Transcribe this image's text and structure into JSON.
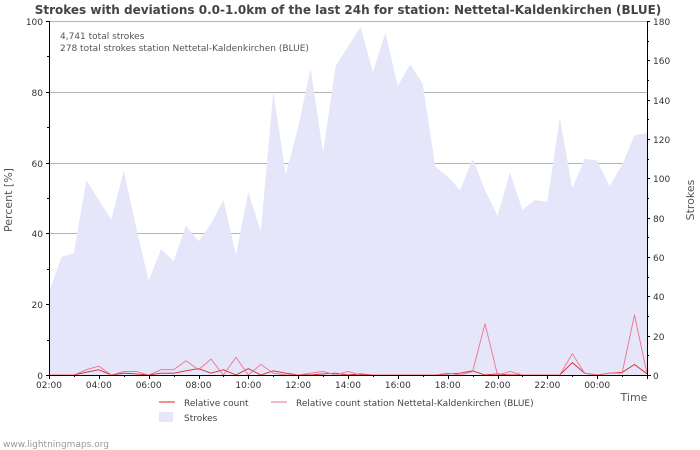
{
  "chart_data": {
    "type": "area+line",
    "title": "Strokes with deviations 0.0-1.0km of the last 24h for station: Nettetal-Kaldenkirchen (BLUE)",
    "annotations": [
      "4,741 total strokes",
      "278 total strokes station Nettetal-Kaldenkirchen (BLUE)"
    ],
    "xlabel": "Time",
    "ylabel_left": "Percent   [%]",
    "ylabel_right": "Strokes",
    "x_ticks": [
      "02:00",
      "04:00",
      "06:00",
      "08:00",
      "10:00",
      "12:00",
      "14:00",
      "16:00",
      "18:00",
      "20:00",
      "22:00",
      "00:00"
    ],
    "x_start_hour": 2,
    "y_left_ticks": [
      0,
      20,
      40,
      60,
      80,
      100
    ],
    "y_left_lim": [
      0,
      100
    ],
    "y_right_ticks": [
      0,
      20,
      40,
      60,
      80,
      100,
      120,
      140,
      160,
      180
    ],
    "y_right_lim": [
      0,
      180
    ],
    "x_hours": [
      0,
      0.5,
      1,
      1.5,
      2,
      2.5,
      3,
      3.5,
      4,
      4.5,
      5,
      5.5,
      6,
      6.5,
      7,
      7.5,
      8,
      8.5,
      9,
      9.5,
      10,
      10.5,
      11,
      11.5,
      12,
      12.5,
      13,
      13.5,
      14,
      14.5,
      15,
      15.5,
      16,
      16.5,
      17,
      17.5,
      18,
      18.5,
      19,
      19.5,
      20,
      20.5,
      21,
      21.5,
      22,
      22.5,
      23,
      23.5,
      24
    ],
    "series": [
      {
        "name": "Strokes",
        "axis": "right",
        "color": "#e6e6fa",
        "values": [
          42,
          60,
          62,
          99,
          89,
          79,
          104,
          75,
          48,
          64,
          58,
          76,
          68,
          77,
          89,
          61,
          93,
          73,
          144,
          102,
          126,
          156,
          113,
          157,
          167,
          177,
          154,
          174,
          147,
          158,
          148,
          106,
          101,
          94,
          110,
          94,
          81,
          103,
          84,
          89,
          88,
          131,
          95,
          110,
          109,
          96,
          107,
          122,
          123
        ]
      },
      {
        "name": "Relative count",
        "axis": "left",
        "color": "#d62728",
        "values": [
          0,
          0,
          0,
          0.8,
          1.5,
          0,
          0.5,
          0.3,
          0,
          0.5,
          0.5,
          1.2,
          1.8,
          0.5,
          1.5,
          0,
          1.8,
          0,
          1.2,
          0.5,
          0,
          0,
          0.3,
          0.5,
          0,
          0.3,
          0,
          0,
          0,
          0,
          0,
          0,
          0.3,
          0.5,
          1.2,
          0,
          0.3,
          0,
          0,
          0,
          0,
          0,
          3.5,
          0.5,
          0,
          0.5,
          0.7,
          3.0,
          0.3
        ]
      },
      {
        "name": "Relative count station Nettetal-Kaldenkirchen (BLUE)",
        "axis": "left",
        "color": "#f0708a",
        "values": [
          0,
          0,
          0,
          1.5,
          2.5,
          0,
          1,
          1,
          0,
          1.5,
          1.5,
          4,
          1.5,
          4.5,
          0,
          5,
          0,
          3,
          0.5,
          0,
          0,
          0.5,
          1,
          0,
          1,
          0,
          0,
          0,
          0,
          0,
          0,
          0,
          0.5,
          0,
          1,
          14.5,
          0,
          1,
          0,
          0,
          0,
          0,
          6,
          0.5,
          0,
          0.5,
          0.5,
          17,
          0.3
        ]
      }
    ],
    "legend": [
      "Relative count",
      "Relative count station Nettetal-Kaldenkirchen (BLUE)",
      "Strokes"
    ]
  },
  "footer": "www.lightningmaps.org",
  "colors": {
    "background": "#ffffff",
    "grid_major": "#b4b4b4",
    "axis": "#000000",
    "text": "#444444"
  }
}
